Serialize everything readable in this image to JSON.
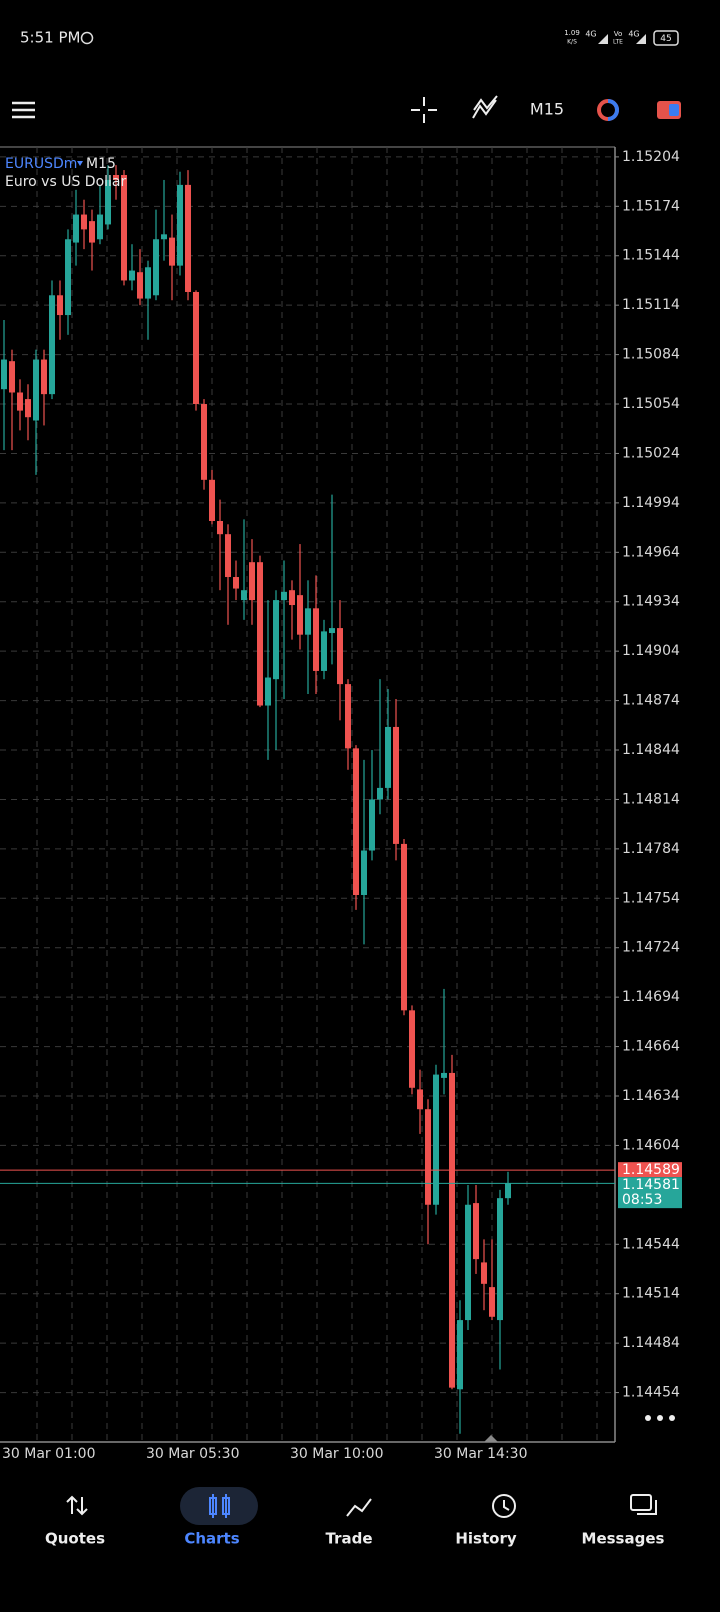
{
  "status_bar": {
    "time": "5:51 PM",
    "net_speed": "1.09",
    "net_unit": "K/S",
    "sim1": "4G",
    "volte": [
      "Vo",
      "LTE"
    ],
    "sim2": "4G",
    "battery": "45"
  },
  "toolbar": {
    "timeframe": "M15"
  },
  "chart_data": {
    "type": "candlestick",
    "symbol": "EURUSDm",
    "timeframe": "M15",
    "description": "Euro vs US Dollar",
    "categories": [
      "30 Mar 01:00",
      null,
      null,
      null,
      null,
      null,
      null,
      null,
      null,
      null,
      null,
      null,
      null,
      null,
      null,
      null,
      null,
      null,
      "30 Mar 05:30",
      null,
      null,
      null,
      null,
      null,
      null,
      null,
      null,
      null,
      null,
      null,
      null,
      null,
      null,
      null,
      null,
      null,
      "30 Mar 10:00",
      null,
      null,
      null,
      null,
      null,
      null,
      null,
      null,
      null,
      null,
      null,
      null,
      null,
      null,
      null,
      null,
      null,
      "30 Mar 14:30",
      null,
      null,
      null,
      null,
      null,
      null,
      null,
      null,
      null
    ],
    "open": [
      1.15063,
      1.1508,
      1.15061,
      1.15057,
      1.15044,
      1.15081,
      1.1506,
      1.1512,
      1.15108,
      1.15152,
      1.15169,
      1.15165,
      1.15154,
      1.15163,
      1.15193,
      1.15193,
      1.15129,
      1.15134,
      1.15118,
      1.1512,
      1.15154,
      1.15155,
      1.15138,
      1.15187,
      1.15122,
      1.15054,
      1.15008,
      1.14983,
      1.14975,
      1.14949,
      1.14935,
      1.14958,
      1.14958,
      1.14871,
      1.14887,
      1.14935,
      1.14941,
      1.14938,
      1.14914,
      1.1493,
      1.14892,
      1.14915,
      1.14918,
      1.14884,
      1.14845,
      1.14756,
      1.14783,
      1.14814,
      1.14821,
      1.14858,
      1.14787,
      1.14686,
      1.14638,
      1.14626,
      1.14568,
      1.14645,
      1.14648,
      1.14456,
      1.14498,
      1.14569,
      1.14533,
      1.14518,
      1.14498,
      1.14572
    ],
    "high": [
      1.15105,
      1.15087,
      1.15069,
      1.15066,
      1.15087,
      1.15087,
      1.15129,
      1.15129,
      1.1516,
      1.15184,
      1.15178,
      1.15172,
      1.15187,
      1.15199,
      1.15199,
      1.15196,
      1.15151,
      1.15148,
      1.15141,
      1.15172,
      1.1519,
      1.15169,
      1.15195,
      1.15196,
      1.15123,
      1.15057,
      1.15014,
      1.14996,
      1.14981,
      1.14959,
      1.14984,
      1.14972,
      1.14962,
      1.14935,
      1.14941,
      1.14959,
      1.14947,
      1.14969,
      1.14947,
      1.1495,
      1.14923,
      1.14999,
      1.14935,
      1.14887,
      1.14847,
      1.14838,
      1.14844,
      1.14887,
      1.14881,
      1.14875,
      1.1479,
      1.14689,
      1.1465,
      1.14632,
      1.14653,
      1.14699,
      1.14659,
      1.1451,
      1.1458,
      1.1458,
      1.14547,
      1.14547,
      1.14577,
      1.14588
    ],
    "low": [
      1.15026,
      1.15026,
      1.15038,
      1.15032,
      1.15011,
      1.15041,
      1.15057,
      1.15093,
      1.15096,
      1.15138,
      1.15148,
      1.15135,
      1.15151,
      1.1516,
      1.15178,
      1.15126,
      1.15123,
      1.15114,
      1.15093,
      1.15117,
      1.15141,
      1.15117,
      1.15132,
      1.15117,
      1.1505,
      1.15002,
      1.14981,
      1.14941,
      1.1492,
      1.14935,
      1.14923,
      1.1492,
      1.1487,
      1.14838,
      1.14844,
      1.14875,
      1.14911,
      1.14905,
      1.14878,
      1.14878,
      1.14887,
      1.14896,
      1.14862,
      1.14832,
      1.14747,
      1.14726,
      1.14777,
      1.14805,
      1.14814,
      1.14777,
      1.14683,
      1.14635,
      1.14611,
      1.14544,
      1.14562,
      1.14635,
      1.14456,
      1.14429,
      1.14492,
      1.14526,
      1.14504,
      1.14498,
      1.14468,
      1.14568
    ],
    "close": [
      1.15081,
      1.15061,
      1.1505,
      1.15046,
      1.15081,
      1.1506,
      1.1512,
      1.15108,
      1.15154,
      1.15169,
      1.1516,
      1.15152,
      1.15169,
      1.1519,
      1.1519,
      1.15129,
      1.15135,
      1.15118,
      1.15137,
      1.15154,
      1.15157,
      1.15138,
      1.15187,
      1.15122,
      1.15054,
      1.15008,
      1.14983,
      1.14975,
      1.14949,
      1.14942,
      1.14941,
      1.14935,
      1.14871,
      1.14888,
      1.14935,
      1.1494,
      1.14932,
      1.14914,
      1.1493,
      1.14892,
      1.14916,
      1.14918,
      1.14884,
      1.14845,
      1.14756,
      1.14783,
      1.14814,
      1.14821,
      1.14858,
      1.14787,
      1.14686,
      1.14639,
      1.14626,
      1.14568,
      1.14647,
      1.14648,
      1.14457,
      1.14498,
      1.14568,
      1.14535,
      1.1452,
      1.145,
      1.14572,
      1.14581
    ],
    "up_color": "#26a69a",
    "down_color": "#ef5350",
    "ylim": [
      1.14424,
      1.1521
    ],
    "yticks": [
      1.15204,
      1.15174,
      1.15144,
      1.15114,
      1.15084,
      1.15054,
      1.15024,
      1.14994,
      1.14964,
      1.14934,
      1.14904,
      1.14874,
      1.14844,
      1.14814,
      1.14784,
      1.14754,
      1.14724,
      1.14694,
      1.14664,
      1.14634,
      1.14604,
      1.14544,
      1.14514,
      1.14484,
      1.14454
    ],
    "grid": true,
    "ask": 1.14589,
    "bid": 1.14581,
    "countdown": "08:53"
  },
  "nav": {
    "items": [
      "Quotes",
      "Charts",
      "Trade",
      "History",
      "Messages"
    ],
    "active": 1
  }
}
